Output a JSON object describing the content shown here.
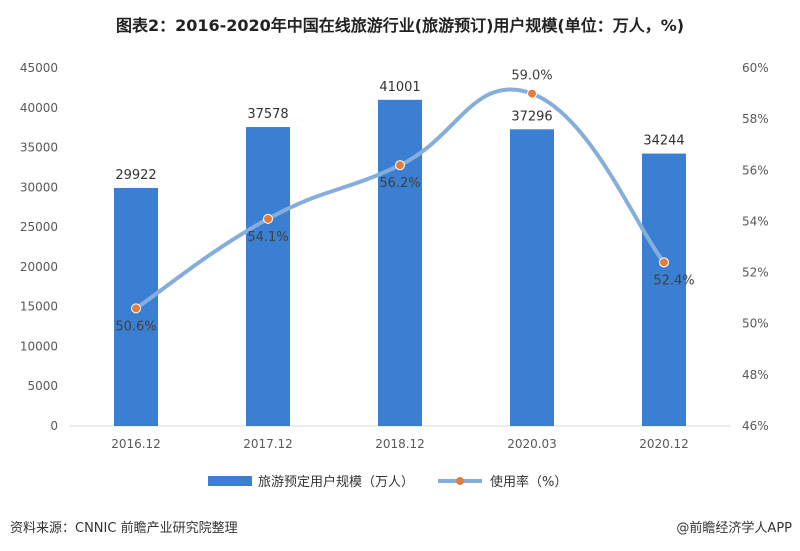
{
  "title": "图表2：2016-2020年中国在线旅游行业(旅游预订)用户规模(单位：万人，%)",
  "footer": {
    "source": "资料来源：CNNIC 前瞻产业研究院整理",
    "credit": "@前瞻经济学人APP"
  },
  "colors": {
    "bar": "#3a7fd2",
    "line": "#86aedd",
    "marker": "#e37d3e"
  },
  "chart_data": {
    "type": "bar+line",
    "categories": [
      "2016.12",
      "2017.12",
      "2018.12",
      "2020.03",
      "2020.12"
    ],
    "series": [
      {
        "name": "旅游预定用户规模（万人）",
        "type": "bar",
        "axis": "left",
        "values": [
          29922,
          37578,
          41001,
          37296,
          34244
        ],
        "labels": [
          "29922",
          "37578",
          "41001",
          "37296",
          "34244"
        ]
      },
      {
        "name": "使用率（%）",
        "type": "line",
        "axis": "right",
        "values": [
          50.6,
          54.1,
          56.2,
          59.0,
          52.4
        ],
        "labels": [
          "50.6%",
          "54.1%",
          "56.2%",
          "59.0%",
          "52.4%"
        ]
      }
    ],
    "left_axis": {
      "ylim": [
        0,
        45000
      ],
      "ticks": [
        "0",
        "5000",
        "10000",
        "15000",
        "20000",
        "25000",
        "30000",
        "35000",
        "40000",
        "45000"
      ]
    },
    "right_axis": {
      "ylim": [
        46,
        60
      ],
      "ticks": [
        "46%",
        "48%",
        "50%",
        "52%",
        "54%",
        "56%",
        "58%",
        "60%"
      ]
    },
    "legend_position": "bottom"
  }
}
